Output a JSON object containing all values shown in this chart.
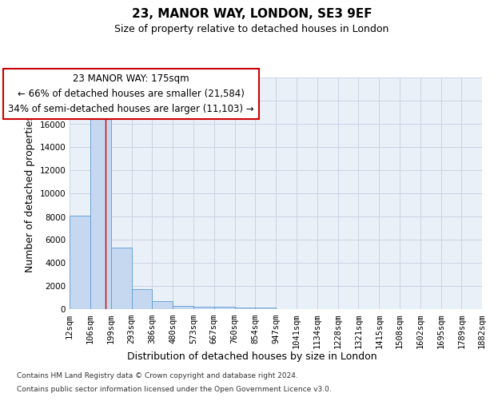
{
  "title1": "23, MANOR WAY, LONDON, SE3 9EF",
  "title2": "Size of property relative to detached houses in London",
  "xlabel": "Distribution of detached houses by size in London",
  "ylabel": "Number of detached properties",
  "footnote1": "Contains HM Land Registry data © Crown copyright and database right 2024.",
  "footnote2": "Contains public sector information licensed under the Open Government Licence v3.0.",
  "bin_edges": [
    12,
    106,
    199,
    293,
    386,
    480,
    573,
    667,
    760,
    854,
    947,
    1041,
    1134,
    1228,
    1321,
    1415,
    1508,
    1602,
    1695,
    1789,
    1882
  ],
  "bar_heights": [
    8100,
    16500,
    5300,
    1750,
    700,
    300,
    200,
    200,
    150,
    150,
    0,
    0,
    0,
    0,
    0,
    0,
    0,
    0,
    0,
    0
  ],
  "bar_color": "#c5d8f0",
  "bar_edge_color": "#5b9bd5",
  "grid_color": "#c8d4e3",
  "bg_color": "#eaf0f8",
  "red_line_x": 175,
  "red_line_color": "#cc0000",
  "ylim": [
    0,
    20000
  ],
  "annotation_line1": "23 MANOR WAY: 175sqm",
  "annotation_line2": "← 66% of detached houses are smaller (21,584)",
  "annotation_line3": "34% of semi-detached houses are larger (11,103) →",
  "annotation_box_color": "#ffffff",
  "annotation_box_edge": "#cc0000",
  "title1_fontsize": 11,
  "title2_fontsize": 9,
  "xlabel_fontsize": 9,
  "ylabel_fontsize": 9,
  "tick_fontsize": 7.5,
  "footnote_fontsize": 6.5,
  "annotation_fontsize": 8.5
}
